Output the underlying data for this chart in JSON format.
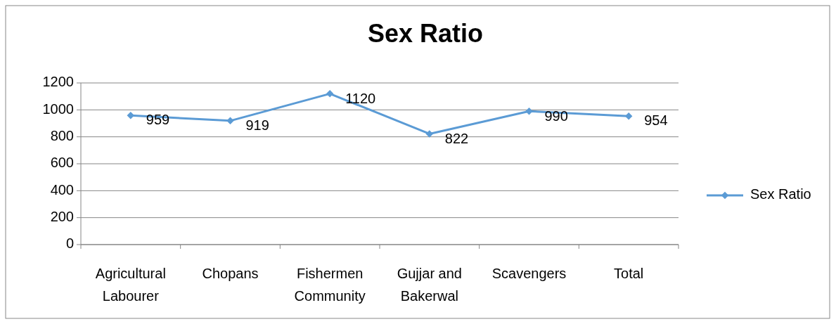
{
  "chart_data": {
    "type": "line",
    "title": "Sex Ratio",
    "categories": [
      "Agricultural Labourer",
      "Chopans",
      "Fishermen Community",
      "Gujjar and Bakerwal",
      "Scavengers",
      "Total"
    ],
    "series": [
      {
        "name": "Sex Ratio",
        "color": "#5b9bd5",
        "values": [
          959,
          919,
          1120,
          822,
          990,
          954
        ]
      }
    ],
    "ylim": [
      0,
      1200
    ],
    "yticks": [
      0,
      200,
      400,
      600,
      800,
      1000,
      1200
    ],
    "grid": "y",
    "legend": "right",
    "marker": "diamond",
    "data_labels": true
  }
}
